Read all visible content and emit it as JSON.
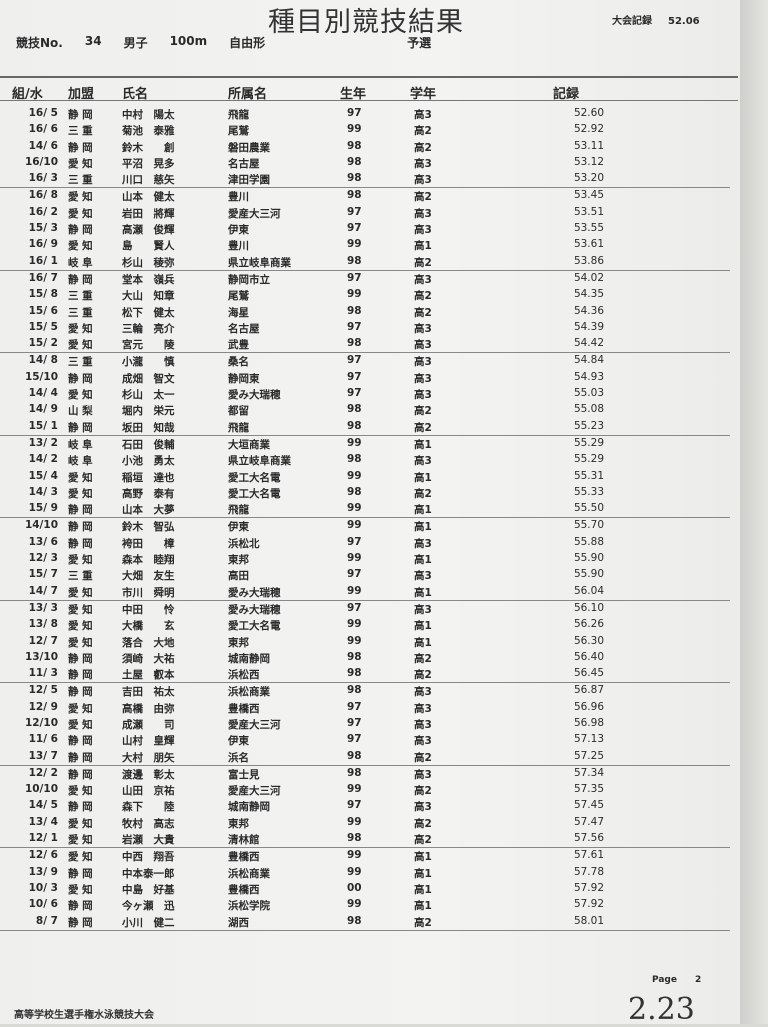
{
  "title": "種目別競技結果",
  "meet_record": {
    "label": "大会記録",
    "value": "52.06"
  },
  "event": {
    "no_label": "競技No.",
    "no": "34",
    "gender": "男子",
    "distance": "100m",
    "stroke": "自由形",
    "round": "予選"
  },
  "headers": [
    "組/水",
    "加盟",
    "氏名",
    "所属名",
    "生年",
    "学年",
    "記録"
  ],
  "groups": [
    [
      [
        "16/ 5",
        "静 岡",
        "中村　陽太",
        "飛龍",
        "97",
        "高3",
        "52.60"
      ],
      [
        "16/ 6",
        "三 重",
        "菊池　泰雅",
        "尾鷲",
        "99",
        "高2",
        "52.92"
      ],
      [
        "14/ 6",
        "静 岡",
        "鈴木　　創",
        "磐田農業",
        "98",
        "高2",
        "53.11"
      ],
      [
        "16/10",
        "愛 知",
        "平沼　晃多",
        "名古屋",
        "98",
        "高3",
        "53.12"
      ],
      [
        "16/ 3",
        "三 重",
        "川口　慈矢",
        "津田学園",
        "98",
        "高3",
        "53.20"
      ]
    ],
    [
      [
        "16/ 8",
        "愛 知",
        "山本　健太",
        "豊川",
        "98",
        "高2",
        "53.45"
      ],
      [
        "16/ 2",
        "愛 知",
        "岩田　將輝",
        "愛産大三河",
        "97",
        "高3",
        "53.51"
      ],
      [
        "15/ 3",
        "静 岡",
        "高瀬　俊輝",
        "伊東",
        "97",
        "高3",
        "53.55"
      ],
      [
        "16/ 9",
        "愛 知",
        "島　　賢人",
        "豊川",
        "99",
        "高1",
        "53.61"
      ],
      [
        "16/ 1",
        "岐 阜",
        "杉山　稜弥",
        "県立岐阜商業",
        "98",
        "高2",
        "53.86"
      ]
    ],
    [
      [
        "16/ 7",
        "静 岡",
        "堂本　嶺兵",
        "静岡市立",
        "97",
        "高3",
        "54.02"
      ],
      [
        "15/ 8",
        "三 重",
        "大山　知章",
        "尾鷲",
        "99",
        "高2",
        "54.35"
      ],
      [
        "15/ 6",
        "三 重",
        "松下　健太",
        "海星",
        "98",
        "高2",
        "54.36"
      ],
      [
        "15/ 5",
        "愛 知",
        "三輪　亮介",
        "名古屋",
        "97",
        "高3",
        "54.39"
      ],
      [
        "15/ 2",
        "愛 知",
        "宮元　　陵",
        "武豊",
        "98",
        "高3",
        "54.42"
      ]
    ],
    [
      [
        "14/ 8",
        "三 重",
        "小瀧　　慎",
        "桑名",
        "97",
        "高3",
        "54.84"
      ],
      [
        "15/10",
        "静 岡",
        "成畑　智文",
        "静岡東",
        "97",
        "高3",
        "54.93"
      ],
      [
        "14/ 4",
        "愛 知",
        "杉山　太一",
        "愛み大瑞穂",
        "97",
        "高3",
        "55.03"
      ],
      [
        "14/ 9",
        "山 梨",
        "堀内　栄元",
        "都留",
        "98",
        "高2",
        "55.08"
      ],
      [
        "15/ 1",
        "静 岡",
        "坂田　知哉",
        "飛龍",
        "98",
        "高2",
        "55.23"
      ]
    ],
    [
      [
        "13/ 2",
        "岐 阜",
        "石田　俊輔",
        "大垣商業",
        "99",
        "高1",
        "55.29"
      ],
      [
        "14/ 2",
        "岐 阜",
        "小池　勇太",
        "県立岐阜商業",
        "98",
        "高3",
        "55.29"
      ],
      [
        "15/ 4",
        "愛 知",
        "稲垣　達也",
        "愛工大名電",
        "99",
        "高1",
        "55.31"
      ],
      [
        "14/ 3",
        "愛 知",
        "高野　泰有",
        "愛工大名電",
        "98",
        "高2",
        "55.33"
      ],
      [
        "15/ 9",
        "静 岡",
        "山本　大夢",
        "飛龍",
        "99",
        "高1",
        "55.50"
      ]
    ],
    [
      [
        "14/10",
        "静 岡",
        "鈴木　智弘",
        "伊東",
        "99",
        "高1",
        "55.70"
      ],
      [
        "13/ 6",
        "静 岡",
        "袴田　　樟",
        "浜松北",
        "97",
        "高3",
        "55.88"
      ],
      [
        "12/ 3",
        "愛 知",
        "森本　睦翔",
        "東邦",
        "99",
        "高1",
        "55.90"
      ],
      [
        "15/ 7",
        "三 重",
        "大畑　友生",
        "高田",
        "97",
        "高3",
        "55.90"
      ],
      [
        "14/ 7",
        "愛 知",
        "市川　舜明",
        "愛み大瑞穂",
        "99",
        "高1",
        "56.04"
      ]
    ],
    [
      [
        "13/ 3",
        "愛 知",
        "中田　　怜",
        "愛み大瑞穂",
        "97",
        "高3",
        "56.10"
      ],
      [
        "13/ 8",
        "愛 知",
        "大橋　　玄",
        "愛工大名電",
        "99",
        "高1",
        "56.26"
      ],
      [
        "12/ 7",
        "愛 知",
        "落合　大地",
        "東邦",
        "99",
        "高1",
        "56.30"
      ],
      [
        "13/10",
        "静 岡",
        "須崎　大祐",
        "城南静岡",
        "98",
        "高2",
        "56.40"
      ],
      [
        "11/ 3",
        "静 岡",
        "土屋　叡本",
        "浜松西",
        "98",
        "高2",
        "56.45"
      ]
    ],
    [
      [
        "12/ 5",
        "静 岡",
        "吉田　祐太",
        "浜松商業",
        "98",
        "高3",
        "56.87"
      ],
      [
        "12/ 9",
        "愛 知",
        "高橋　由弥",
        "豊橋西",
        "97",
        "高3",
        "56.96"
      ],
      [
        "12/10",
        "愛 知",
        "成瀬　　司",
        "愛産大三河",
        "97",
        "高3",
        "56.98"
      ],
      [
        "11/ 6",
        "静 岡",
        "山村　皇輝",
        "伊東",
        "97",
        "高3",
        "57.13"
      ],
      [
        "13/ 7",
        "静 岡",
        "大村　朋矢",
        "浜名",
        "98",
        "高2",
        "57.25"
      ]
    ],
    [
      [
        "12/ 2",
        "静 岡",
        "渡邊　彰太",
        "富士見",
        "98",
        "高3",
        "57.34"
      ],
      [
        "10/10",
        "愛 知",
        "山田　京祐",
        "愛産大三河",
        "99",
        "高2",
        "57.35"
      ],
      [
        "14/ 5",
        "静 岡",
        "森下　　陸",
        "城南静岡",
        "97",
        "高3",
        "57.45"
      ],
      [
        "13/ 4",
        "愛 知",
        "牧村　高志",
        "東邦",
        "99",
        "高2",
        "57.47"
      ],
      [
        "12/ 1",
        "愛 知",
        "岩瀬　大貴",
        "清林館",
        "98",
        "高2",
        "57.56"
      ]
    ],
    [
      [
        "12/ 6",
        "愛 知",
        "中西　翔吾",
        "豊橋西",
        "99",
        "高1",
        "57.61"
      ],
      [
        "13/ 9",
        "静 岡",
        "中本泰一郎",
        "浜松商業",
        "99",
        "高1",
        "57.78"
      ],
      [
        "10/ 3",
        "愛 知",
        "中島　好基",
        "豊橋西",
        "00",
        "高1",
        "57.92"
      ],
      [
        "10/ 6",
        "静 岡",
        "今ヶ瀬　迅",
        "浜松学院",
        "99",
        "高1",
        "57.92"
      ],
      [
        "8/ 7",
        "静 岡",
        "小川　健二",
        "湖西",
        "98",
        "高2",
        "58.01"
      ]
    ]
  ],
  "page": {
    "label": "Page",
    "number": "2"
  },
  "footer": "高等学校生選手権水泳競技大会",
  "handwritten": "2.23"
}
